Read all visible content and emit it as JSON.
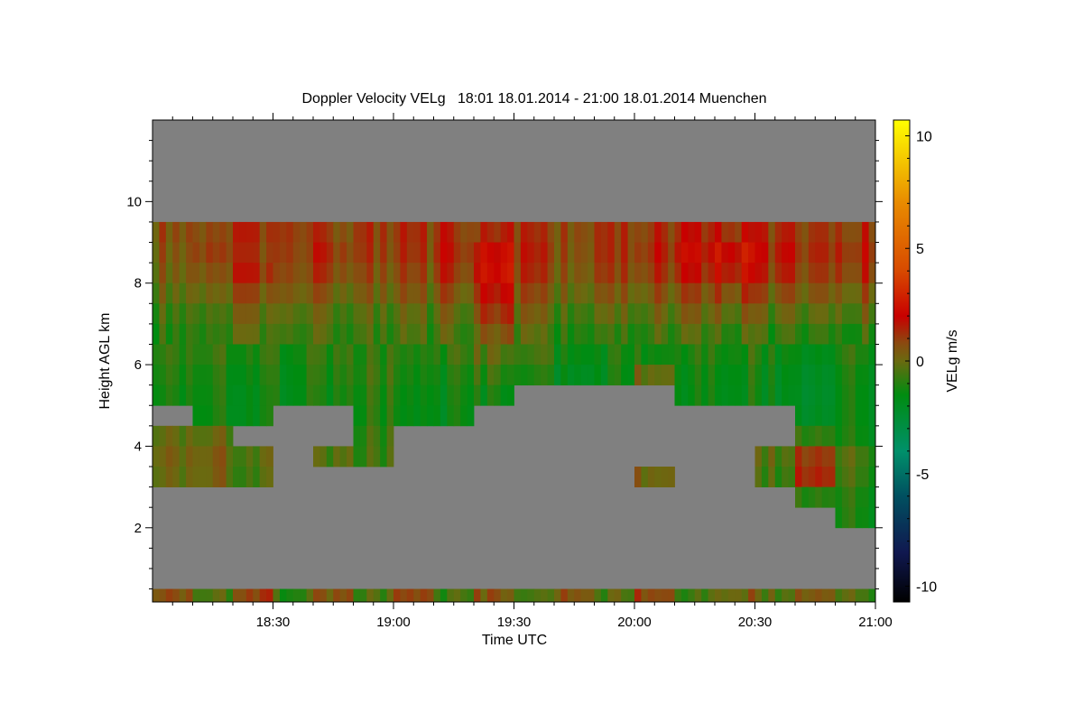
{
  "chart_data": {
    "type": "heatmap",
    "title": "Doppler Velocity VELg   18:01 18.01.2014 - 21:00 18.01.2014 Muenchen",
    "xlabel": "Time UTC",
    "ylabel": "Height AGL km",
    "colorbar_label": "VELg m/s",
    "x_unit": "minutes after 18:00 UTC",
    "xlim": [
      0,
      180
    ],
    "ylim": [
      0.18,
      12.0
    ],
    "clim": [
      -10.7,
      10.7
    ],
    "x_ticks": [
      {
        "value": 30,
        "label": "18:30"
      },
      {
        "value": 60,
        "label": "19:00"
      },
      {
        "value": 90,
        "label": "19:30"
      },
      {
        "value": 120,
        "label": "20:00"
      },
      {
        "value": 150,
        "label": "20:30"
      },
      {
        "value": 180,
        "label": "21:00"
      }
    ],
    "y_ticks": [
      {
        "value": 2,
        "label": "2"
      },
      {
        "value": 4,
        "label": "4"
      },
      {
        "value": 6,
        "label": "6"
      },
      {
        "value": 8,
        "label": "8"
      },
      {
        "value": 10,
        "label": "10"
      }
    ],
    "colorbar_ticks": [
      {
        "value": 10,
        "label": "10"
      },
      {
        "value": 5,
        "label": "5"
      },
      {
        "value": 0,
        "label": "0"
      },
      {
        "value": -5,
        "label": "-5"
      },
      {
        "value": -10,
        "label": "-10"
      }
    ],
    "no_echo_color": "#808080",
    "colormap": [
      {
        "v": -10.7,
        "c": "#000000"
      },
      {
        "v": -8.5,
        "c": "#101850"
      },
      {
        "v": -6.0,
        "c": "#005060"
      },
      {
        "v": -4.0,
        "c": "#00906a"
      },
      {
        "v": -1.5,
        "c": "#008c10"
      },
      {
        "v": 0.0,
        "c": "#6a6a10"
      },
      {
        "v": 0.8,
        "c": "#8a4a10"
      },
      {
        "v": 2.0,
        "c": "#c80000"
      },
      {
        "v": 4.0,
        "c": "#d84a00"
      },
      {
        "v": 7.0,
        "c": "#e88a00"
      },
      {
        "v": 10.7,
        "c": "#ffff00"
      }
    ],
    "x_bin_minutes": 10,
    "x_bin_starts": [
      0,
      10,
      20,
      30,
      40,
      50,
      60,
      70,
      80,
      90,
      100,
      110,
      120,
      130,
      140,
      150,
      160,
      170
    ],
    "height_bin_km": 0.5,
    "height_bin_bottoms_top_to_bottom": [
      11.5,
      11.0,
      10.5,
      10.0,
      9.5,
      9.0,
      8.5,
      8.0,
      7.5,
      7.0,
      6.5,
      6.0,
      5.5,
      5.0,
      4.5,
      4.0,
      3.5,
      3.0,
      2.5,
      2.0,
      1.5,
      1.0,
      0.5,
      0.0
    ],
    "velocity_grid": [
      [
        null,
        null,
        null,
        null,
        null,
        null,
        null,
        null,
        null,
        null,
        null,
        null,
        null,
        null,
        null,
        null,
        null,
        null
      ],
      [
        null,
        null,
        null,
        null,
        null,
        null,
        null,
        null,
        null,
        null,
        null,
        null,
        null,
        null,
        null,
        null,
        null,
        null
      ],
      [
        null,
        null,
        null,
        null,
        null,
        null,
        null,
        null,
        null,
        null,
        null,
        null,
        null,
        null,
        null,
        null,
        null,
        null
      ],
      [
        null,
        null,
        null,
        null,
        null,
        null,
        null,
        null,
        null,
        null,
        null,
        null,
        null,
        null,
        null,
        null,
        null,
        null
      ],
      [
        null,
        null,
        null,
        null,
        null,
        null,
        null,
        null,
        null,
        null,
        null,
        null,
        null,
        null,
        null,
        null,
        null,
        null
      ],
      [
        0.8,
        1.0,
        1.2,
        0.9,
        1.0,
        1.1,
        1.0,
        1.3,
        1.2,
        1.0,
        0.9,
        1.0,
        1.1,
        1.4,
        1.6,
        1.2,
        1.0,
        1.3
      ],
      [
        0.6,
        1.2,
        1.0,
        0.8,
        1.3,
        1.0,
        0.9,
        1.5,
        2.0,
        1.2,
        0.8,
        1.0,
        1.3,
        1.8,
        2.4,
        1.5,
        1.2,
        1.6
      ],
      [
        0.4,
        0.8,
        1.3,
        0.6,
        1.0,
        0.7,
        0.6,
        1.2,
        2.2,
        1.0,
        0.6,
        0.8,
        1.0,
        1.4,
        2.0,
        1.2,
        0.9,
        1.3
      ],
      [
        0.0,
        0.3,
        0.6,
        0.2,
        0.4,
        0.3,
        0.2,
        0.6,
        1.6,
        0.5,
        0.2,
        0.3,
        0.4,
        0.6,
        1.0,
        0.5,
        0.4,
        0.6
      ],
      [
        -0.5,
        -0.3,
        0.0,
        -0.4,
        -0.2,
        -0.3,
        -0.4,
        0.0,
        1.0,
        0.0,
        -0.4,
        -0.3,
        -0.2,
        0.0,
        0.2,
        -0.2,
        -0.3,
        0.0
      ],
      [
        -0.8,
        -0.6,
        -0.4,
        -0.8,
        -0.5,
        -0.6,
        -0.7,
        -0.4,
        0.3,
        -0.5,
        -0.8,
        -0.9,
        -0.7,
        -0.6,
        -0.5,
        -0.8,
        -0.9,
        -0.7
      ],
      [
        -1.0,
        -0.9,
        -0.8,
        -1.1,
        -0.8,
        -0.7,
        -0.9,
        -0.8,
        -0.4,
        -1.0,
        -1.2,
        -1.3,
        -1.0,
        -1.1,
        -1.0,
        -1.2,
        -1.3,
        -1.1
      ],
      [
        -1.2,
        -1.2,
        -1.1,
        -1.3,
        -1.0,
        -0.6,
        -1.1,
        -1.2,
        -1.0,
        -1.5,
        -1.6,
        -1.5,
        0.2,
        -1.4,
        -1.3,
        -1.5,
        -1.6,
        -1.4
      ],
      [
        -1.4,
        -1.3,
        -1.3,
        -1.4,
        -1.2,
        -0.8,
        -1.3,
        -1.4,
        -1.5,
        null,
        null,
        null,
        null,
        -1.5,
        -1.4,
        -1.6,
        -1.7,
        -1.5
      ],
      [
        null,
        -1.4,
        -1.3,
        null,
        null,
        -0.9,
        -1.4,
        -1.5,
        null,
        null,
        null,
        null,
        null,
        null,
        null,
        null,
        -1.6,
        -1.5
      ],
      [
        -0.3,
        -0.2,
        null,
        null,
        null,
        -0.6,
        null,
        null,
        null,
        null,
        null,
        null,
        null,
        null,
        null,
        null,
        -0.4,
        -1.4
      ],
      [
        0.0,
        0.2,
        -0.1,
        null,
        -0.3,
        -0.5,
        null,
        null,
        null,
        null,
        null,
        null,
        null,
        null,
        null,
        -0.2,
        1.5,
        -0.6
      ],
      [
        -0.2,
        0.1,
        -0.3,
        null,
        null,
        null,
        null,
        null,
        null,
        null,
        null,
        null,
        0.4,
        null,
        null,
        -0.5,
        1.8,
        -0.8
      ],
      [
        null,
        null,
        null,
        null,
        null,
        null,
        null,
        null,
        null,
        null,
        null,
        null,
        null,
        null,
        null,
        null,
        -0.5,
        -1.2
      ],
      [
        null,
        null,
        null,
        null,
        null,
        null,
        null,
        null,
        null,
        null,
        null,
        null,
        null,
        null,
        null,
        null,
        null,
        -1.3
      ],
      [
        null,
        null,
        null,
        null,
        null,
        null,
        null,
        null,
        null,
        null,
        null,
        null,
        null,
        null,
        null,
        null,
        null,
        null
      ],
      [
        null,
        null,
        null,
        null,
        null,
        null,
        null,
        null,
        null,
        null,
        null,
        null,
        null,
        null,
        null,
        null,
        null,
        null
      ],
      [
        null,
        null,
        null,
        null,
        null,
        null,
        null,
        null,
        null,
        null,
        null,
        null,
        null,
        null,
        null,
        null,
        null,
        null
      ],
      [
        0.5,
        -0.5,
        1.2,
        -0.8,
        0.6,
        -0.3,
        1.0,
        -0.6,
        0.4,
        -0.9,
        0.8,
        -0.4,
        1.1,
        -0.7,
        0.3,
        -0.2,
        0.9,
        -0.5
      ]
    ]
  }
}
